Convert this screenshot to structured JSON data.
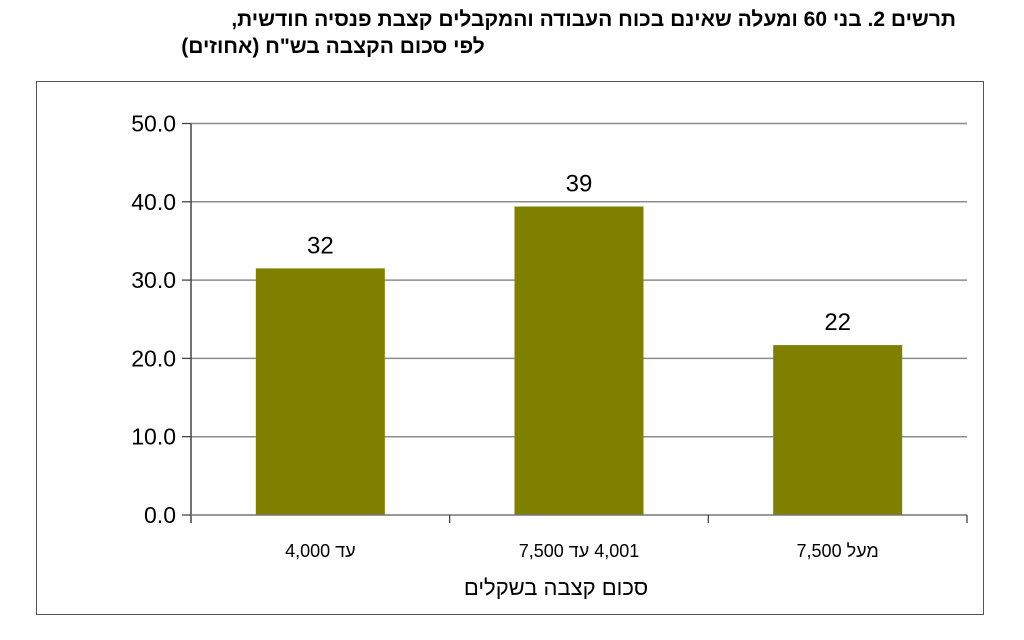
{
  "title": {
    "line1": "תרשים 2. בני 60 ומעלה שאינם בכוח העבודה והמקבלים קצבת פנסיה חודשית,",
    "line2": "לפי סכום הקצבה בש\"ח (אחוזים)"
  },
  "colors": {
    "bar": "#808000",
    "grid": "#8c8c8c",
    "axis": "#444444",
    "frame": "#555555"
  },
  "chart_data": {
    "type": "bar",
    "title": "תרשים 2. בני 60 ומעלה שאינם בכוח העבודה והמקבלים קצבת פנסיה חודשית, לפי סכום הקצבה בש\"ח (אחוזים)",
    "categories": [
      "עד 4,000",
      "4,001 עד 7,500",
      "מעל 7,500"
    ],
    "values": [
      31.5,
      39.4,
      21.7
    ],
    "data_labels": [
      "32",
      "39",
      "22"
    ],
    "xlabel": "סכום קצבה בשקלים",
    "ylabel": "",
    "ylim": [
      0,
      50
    ],
    "yticks": [
      "0.0",
      "10.0",
      "20.0",
      "30.0",
      "40.0",
      "50.0"
    ],
    "grid": true,
    "legend": null
  }
}
